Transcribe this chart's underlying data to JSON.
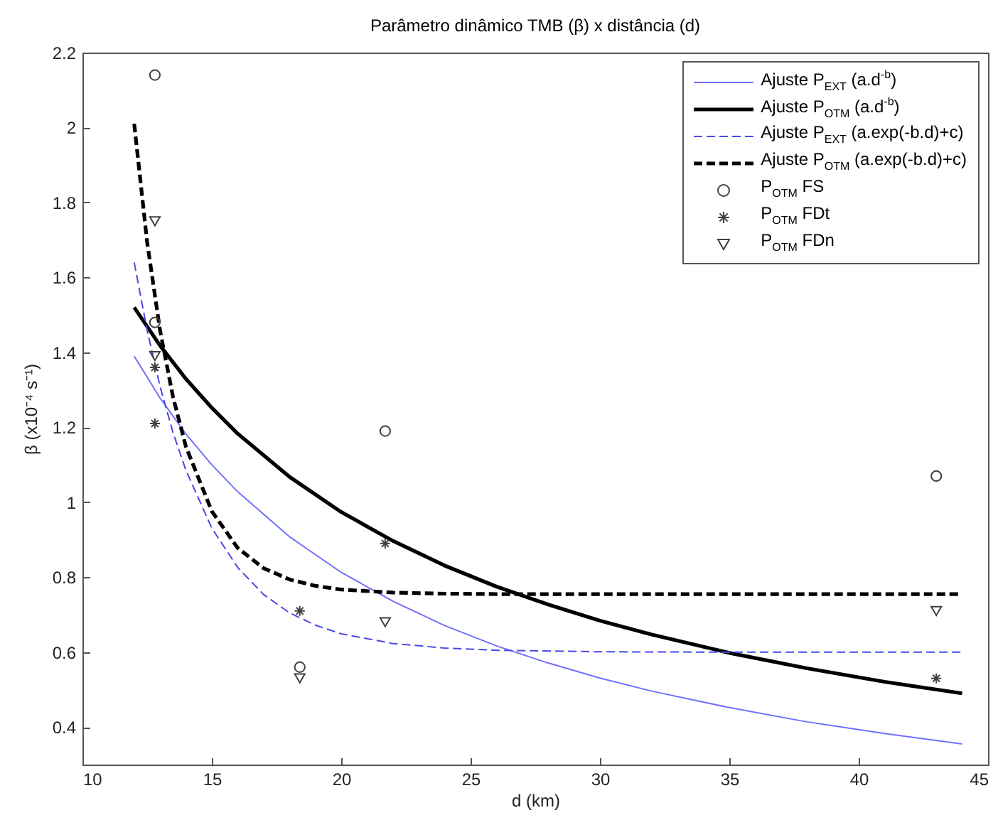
{
  "chart_data": {
    "type": "line",
    "title": "Parâmetro dinâmico TMB (β) x distância (d)",
    "xlabel": "d (km)",
    "ylabel": "β (x10⁻⁴ s⁻¹)",
    "xlim": [
      10,
      45
    ],
    "xticks": [
      10,
      15,
      20,
      25,
      30,
      35,
      40,
      45
    ],
    "ylim": [
      0.3,
      2.2
    ],
    "yticks": [
      0.4,
      0.6,
      0.8,
      1,
      1.2,
      1.4,
      1.6,
      1.8,
      2,
      2.2
    ],
    "grid": false,
    "legend": "top right",
    "series": [
      {
        "name": "Ajuste P$_{EXT}$ (a.d$^{-b}$)",
        "color": "#7070ff",
        "line_style": "solid",
        "x": [
          12,
          13,
          14,
          15,
          16,
          18,
          20,
          22,
          24,
          26,
          28,
          30,
          32,
          35,
          38,
          41,
          44
        ],
        "values": [
          1.39,
          1.278,
          1.182,
          1.1,
          1.028,
          0.908,
          0.813,
          0.736,
          0.671,
          0.617,
          0.571,
          0.531,
          0.496,
          0.452,
          0.414,
          0.383,
          0.355
        ]
      },
      {
        "name": "Ajuste P$_{OTM}$ (a.d$^{-b}$)",
        "color": "#000000",
        "line_style": "solid",
        "x": [
          12,
          13,
          14,
          15,
          16,
          18,
          20,
          22,
          24,
          26,
          28,
          30,
          32,
          35,
          38,
          41,
          44
        ],
        "values": [
          1.52,
          1.418,
          1.329,
          1.252,
          1.183,
          1.068,
          0.974,
          0.897,
          0.831,
          0.775,
          0.727,
          0.684,
          0.647,
          0.598,
          0.557,
          0.521,
          0.49
        ]
      },
      {
        "name": "Ajuste P$_{EXT}$ (a.exp(-b.d)+c)",
        "color": "#4848e8",
        "line_style": "dashed",
        "x": [
          12,
          12.5,
          13,
          13.5,
          14,
          15,
          16,
          17,
          18,
          19,
          20,
          22,
          24,
          26,
          30,
          35,
          44
        ],
        "values": [
          1.64,
          1.459,
          1.309,
          1.186,
          1.085,
          0.931,
          0.826,
          0.754,
          0.705,
          0.672,
          0.649,
          0.623,
          0.611,
          0.605,
          0.601,
          0.6,
          0.6
        ]
      },
      {
        "name": "Ajuste P$_{OTM}$ (a.exp(-b.d)+c)",
        "color": "#000000",
        "line_style": "dashed",
        "x": [
          12,
          12.5,
          13,
          13.5,
          14,
          15,
          16,
          17,
          18,
          19,
          20,
          22,
          24,
          26,
          35,
          44
        ],
        "values": [
          2.01,
          1.694,
          1.458,
          1.281,
          1.148,
          0.976,
          0.878,
          0.824,
          0.794,
          0.777,
          0.767,
          0.759,
          0.756,
          0.755,
          0.755,
          0.755
        ]
      },
      {
        "name": "P$_{OTM}$ FS",
        "type": "scatter",
        "color": "#404040",
        "marker": "circle",
        "x": [
          12.8,
          12.8,
          18.4,
          21.7,
          43
        ],
        "values": [
          2.14,
          1.48,
          0.56,
          1.19,
          1.07
        ]
      },
      {
        "name": "P$_{OTM}$ FDt",
        "type": "scatter",
        "color": "#404040",
        "marker": "cross",
        "x": [
          12.8,
          12.8,
          18.4,
          21.7,
          43
        ],
        "values": [
          1.36,
          1.21,
          0.71,
          0.89,
          0.53
        ]
      },
      {
        "name": "P$_{OTM}$ FDn",
        "type": "scatter",
        "color": "#404040",
        "marker": "triangle",
        "x": [
          12.8,
          12.8,
          18.4,
          21.7,
          43
        ],
        "values": [
          1.75,
          1.39,
          0.53,
          0.68,
          0.71
        ]
      }
    ]
  }
}
